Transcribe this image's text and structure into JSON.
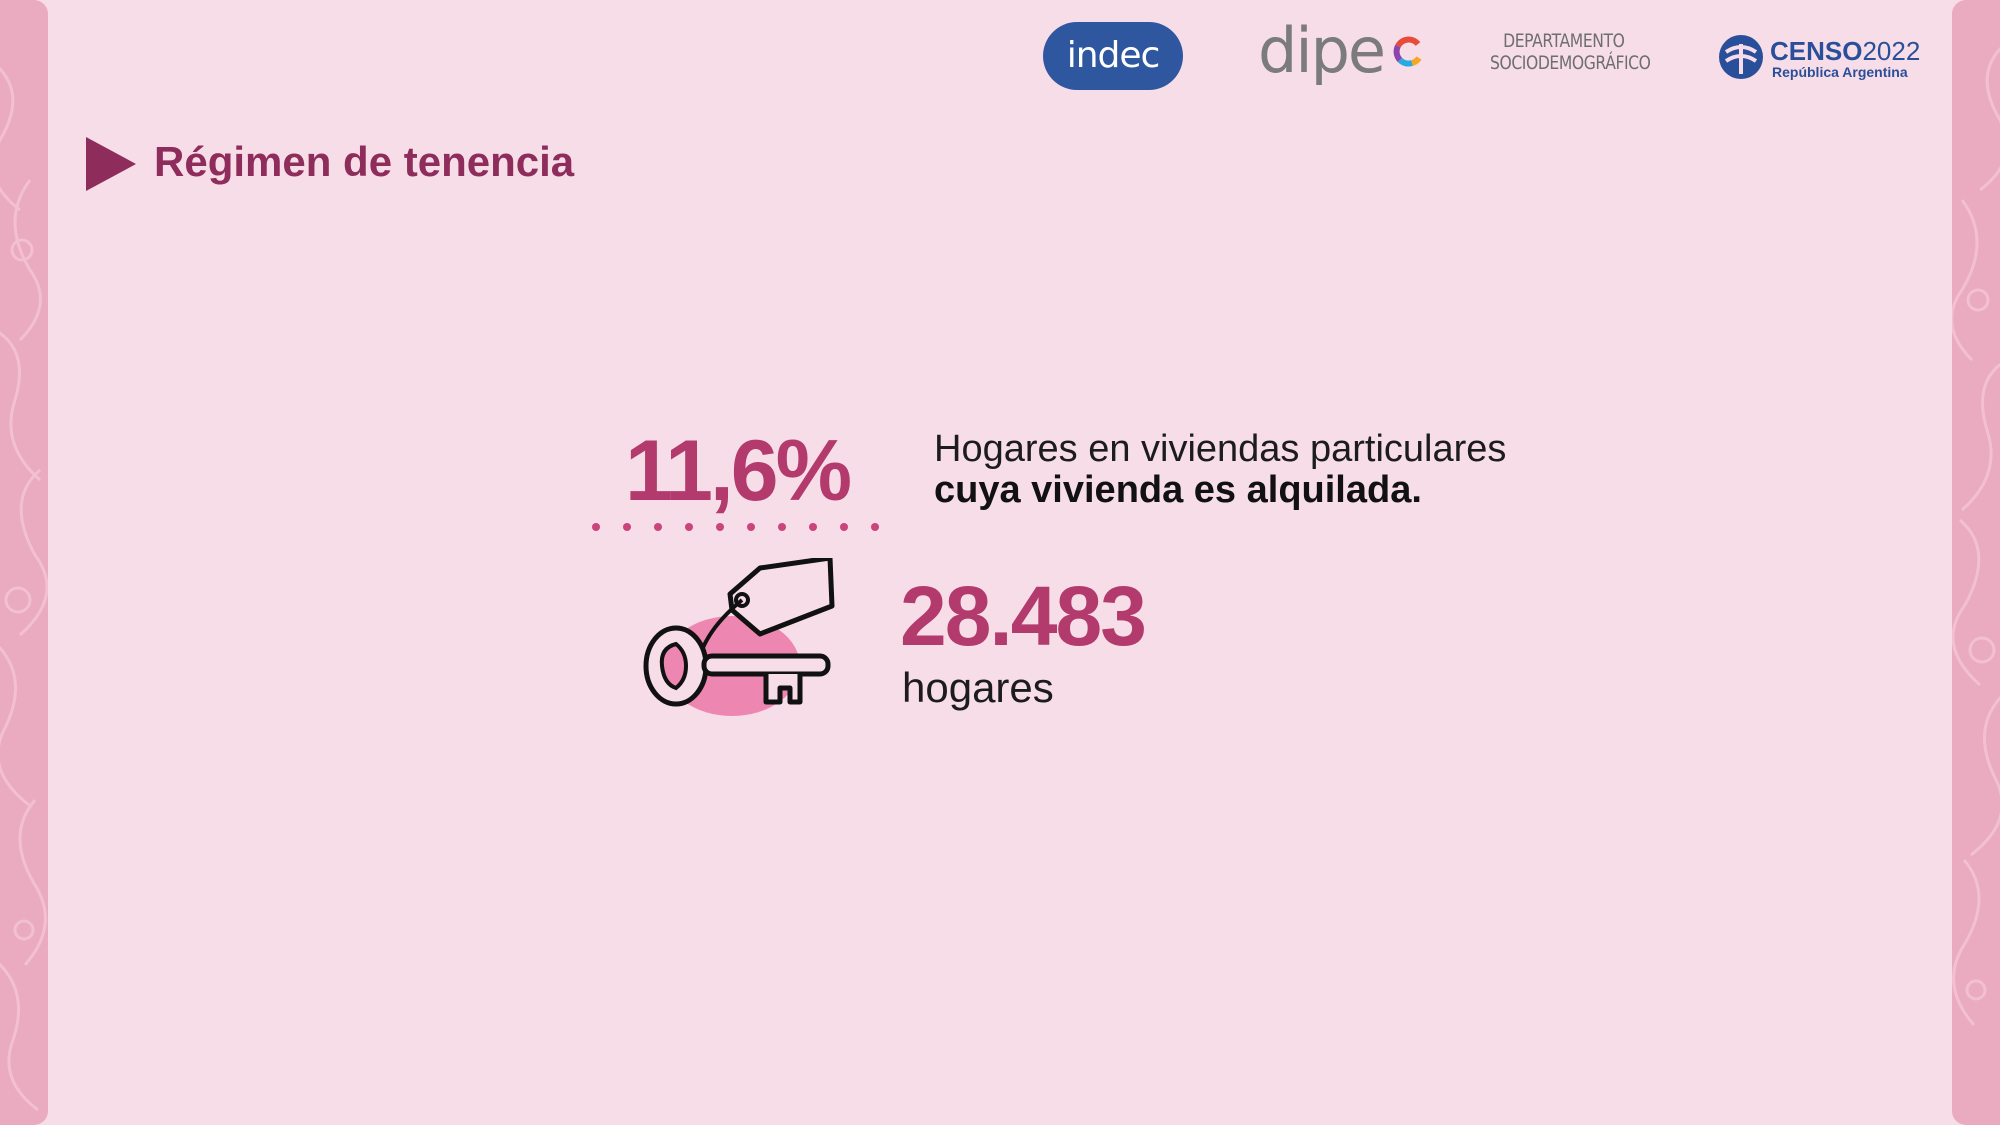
{
  "header": {
    "logos": {
      "indec": "indec",
      "dipec": "dipe",
      "departamento_line1": "DEPARTAMENTO",
      "departamento_line2": "SOCIODEMOGRÁFICO",
      "censo_word_bold": "CENSO",
      "censo_year": "2022",
      "censo_sub": "República Argentina"
    }
  },
  "title": "Régimen de tenencia",
  "stat": {
    "percent": "11,6%",
    "description_line1": "Hogares en viviendas particulares",
    "description_line2": "cuya vivienda es alquilada.",
    "count": "28.483",
    "count_label": "hogares"
  },
  "icons": {
    "title_marker": "play-triangle-icon",
    "key": "key-with-tag-icon"
  },
  "colors": {
    "background": "#f7dde8",
    "accent_dark": "#8e2c5c",
    "accent": "#b33a6c",
    "pink_blob": "#ee86b2",
    "side_strip": "#eaaabf",
    "indec_blue": "#2f57a0"
  }
}
